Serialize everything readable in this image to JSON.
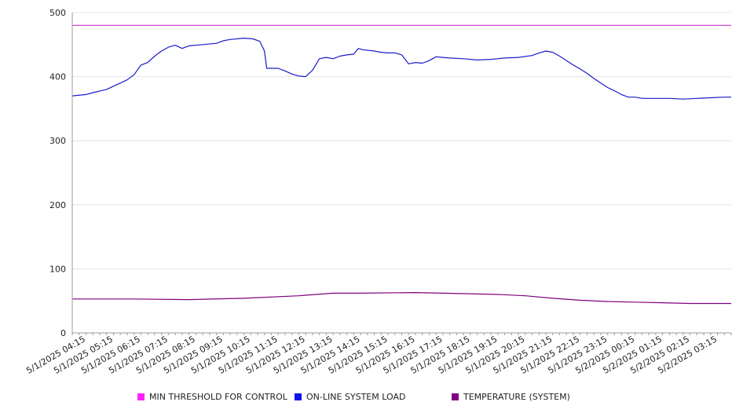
{
  "chart_data": {
    "type": "line",
    "ylim": [
      0,
      500
    ],
    "y_ticks": [
      "0",
      "100",
      "200",
      "300",
      "400",
      "500"
    ],
    "grid": "horizontal",
    "legend_position": "bottom",
    "x_ticks": [
      "5/1/2025 04:15",
      "5/1/2025 05:15",
      "5/1/2025 06:15",
      "5/1/2025 07:15",
      "5/1/2025 08:15",
      "5/1/2025 09:15",
      "5/1/2025 10:15",
      "5/1/2025 11:15",
      "5/1/2025 12:15",
      "5/1/2025 13:15",
      "5/1/2025 14:15",
      "5/1/2025 15:15",
      "5/1/2025 16:15",
      "5/1/2025 17:15",
      "5/1/2025 18:15",
      "5/1/2025 19:15",
      "5/1/2025 20:15",
      "5/1/2025 21:15",
      "5/1/2025 22:15",
      "5/1/2025 23:15",
      "5/2/2025 00:15",
      "5/2/2025 01:15",
      "5/2/2025 02:15",
      "5/2/2025 03:15"
    ],
    "x_range": [
      "5/1/2025 03:45",
      "5/2/2025 03:45"
    ],
    "series": [
      {
        "name": "MIN THRESHOLD FOR CONTROL",
        "color": "#cc33cc",
        "x": [
          "5/1/2025 03:45",
          "5/2/2025 03:45"
        ],
        "y": [
          480,
          480
        ]
      },
      {
        "name": "ON-LINE SYSTEM LOAD",
        "color": "#1a1acc",
        "x": [
          "5/1/2025 03:45",
          "5/1/2025 04:15",
          "5/1/2025 04:30",
          "5/1/2025 05:00",
          "5/1/2025 05:15",
          "5/1/2025 05:30",
          "5/1/2025 05:45",
          "5/1/2025 06:00",
          "5/1/2025 06:15",
          "5/1/2025 06:30",
          "5/1/2025 06:45",
          "5/1/2025 07:00",
          "5/1/2025 07:15",
          "5/1/2025 07:30",
          "5/1/2025 07:45",
          "5/1/2025 08:00",
          "5/1/2025 08:30",
          "5/1/2025 09:00",
          "5/1/2025 09:15",
          "5/1/2025 09:30",
          "5/1/2025 10:00",
          "5/1/2025 10:20",
          "5/1/2025 10:35",
          "5/1/2025 10:45",
          "5/1/2025 10:50",
          "5/1/2025 11:15",
          "5/1/2025 11:30",
          "5/1/2025 11:45",
          "5/1/2025 12:00",
          "5/1/2025 12:15",
          "5/1/2025 12:30",
          "5/1/2025 12:45",
          "5/1/2025 13:00",
          "5/1/2025 13:15",
          "5/1/2025 13:30",
          "5/1/2025 13:45",
          "5/1/2025 14:00",
          "5/1/2025 14:10",
          "5/1/2025 14:20",
          "5/1/2025 14:45",
          "5/1/2025 15:00",
          "5/1/2025 15:15",
          "5/1/2025 15:30",
          "5/1/2025 15:45",
          "5/1/2025 16:00",
          "5/1/2025 16:15",
          "5/1/2025 16:30",
          "5/1/2025 16:45",
          "5/1/2025 17:00",
          "5/1/2025 17:15",
          "5/1/2025 17:30",
          "5/1/2025 18:00",
          "5/1/2025 18:30",
          "5/1/2025 19:00",
          "5/1/2025 19:30",
          "5/1/2025 20:00",
          "5/1/2025 20:30",
          "5/1/2025 20:45",
          "5/1/2025 21:00",
          "5/1/2025 21:15",
          "5/1/2025 21:30",
          "5/1/2025 21:45",
          "5/1/2025 22:00",
          "5/1/2025 22:15",
          "5/1/2025 22:30",
          "5/1/2025 22:45",
          "5/1/2025 23:00",
          "5/1/2025 23:15",
          "5/1/2025 23:30",
          "5/1/2025 23:45",
          "5/2/2025 00:00",
          "5/2/2025 00:15",
          "5/2/2025 00:30",
          "5/2/2025 01:00",
          "5/2/2025 01:30",
          "5/2/2025 02:00",
          "5/2/2025 02:30",
          "5/2/2025 03:00",
          "5/2/2025 03:30",
          "5/2/2025 03:45"
        ],
        "y": [
          370,
          372,
          375,
          380,
          385,
          390,
          395,
          403,
          418,
          422,
          432,
          440,
          446,
          449,
          444,
          448,
          450,
          452,
          456,
          458,
          460,
          459,
          455,
          440,
          413,
          413,
          409,
          404,
          401,
          400,
          410,
          428,
          430,
          428,
          432,
          434,
          435,
          444,
          442,
          440,
          438,
          437,
          437,
          434,
          420,
          422,
          421,
          425,
          431,
          430,
          429,
          428,
          426,
          427,
          429,
          430,
          433,
          437,
          440,
          438,
          432,
          425,
          418,
          412,
          405,
          397,
          390,
          383,
          378,
          372,
          368,
          368,
          366,
          366,
          366,
          365,
          366,
          367,
          368,
          368
        ]
      },
      {
        "name": "TEMPERATURE (SYSTEM)",
        "color": "#800080",
        "x": [
          "5/1/2025 03:45",
          "5/1/2025 06:00",
          "5/1/2025 08:00",
          "5/1/2025 10:00",
          "5/1/2025 12:00",
          "5/1/2025 13:15",
          "5/1/2025 14:15",
          "5/1/2025 16:15",
          "5/1/2025 17:15",
          "5/1/2025 19:15",
          "5/1/2025 20:15",
          "5/1/2025 21:15",
          "5/1/2025 22:15",
          "5/1/2025 23:15",
          "5/2/2025 00:15",
          "5/2/2025 01:15",
          "5/2/2025 02:15",
          "5/2/2025 03:45"
        ],
        "y": [
          53,
          53,
          52,
          54,
          58,
          62,
          62,
          63,
          62,
          60,
          58,
          54,
          51,
          49,
          48,
          47,
          46,
          46
        ]
      }
    ]
  }
}
